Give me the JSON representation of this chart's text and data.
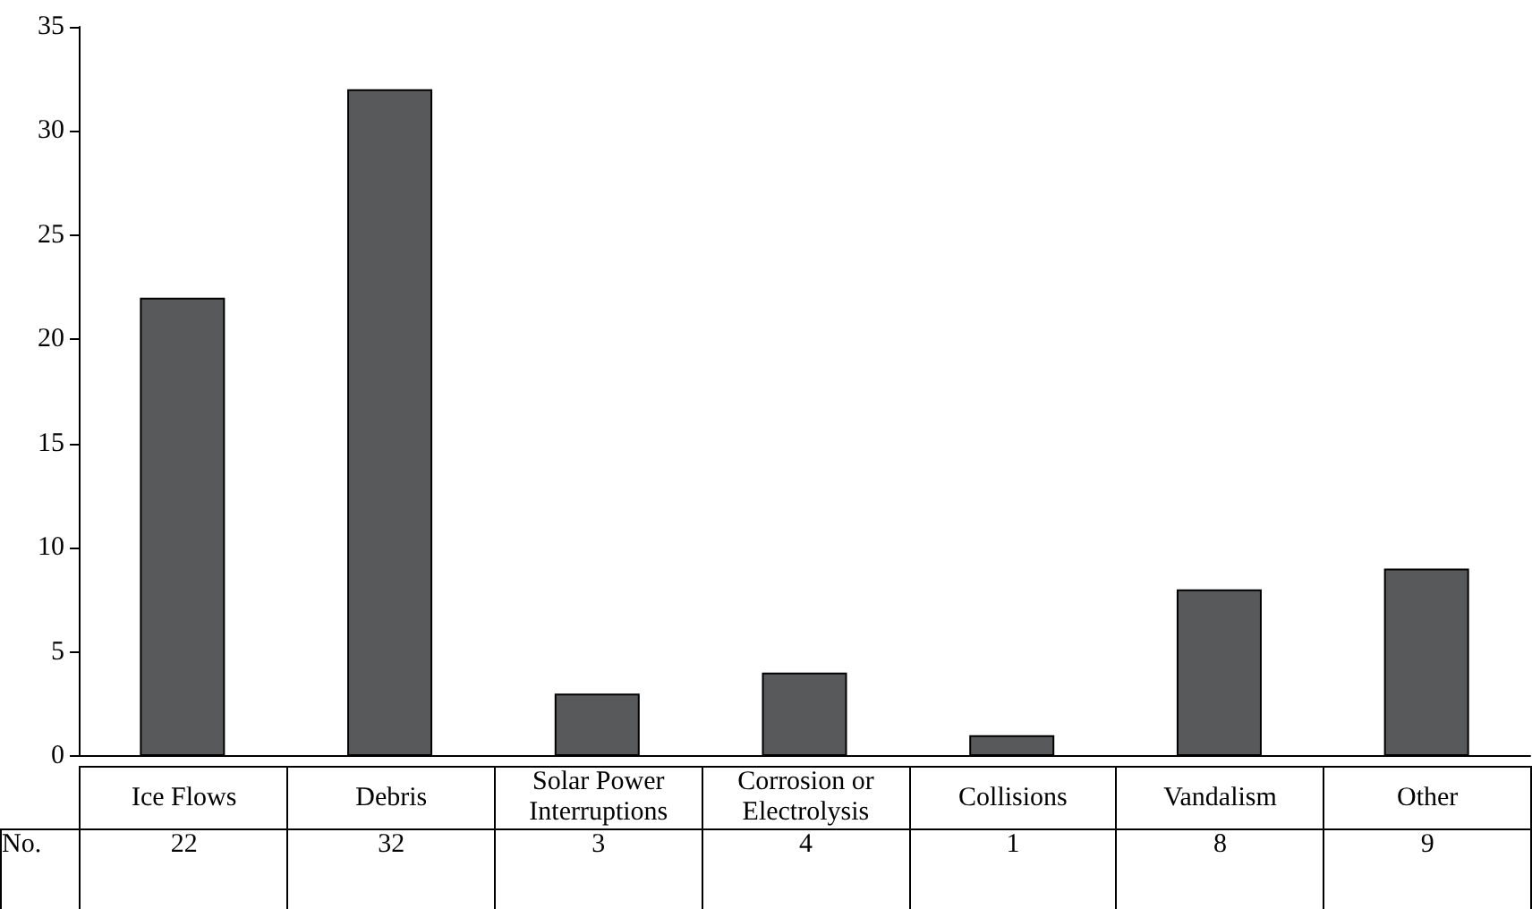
{
  "chart_data": {
    "type": "bar",
    "categories": [
      "Ice Flows",
      "Debris",
      "Solar Power Interruptions",
      "Corrosion or Electrolysis",
      "Collisions",
      "Vandalism",
      "Other"
    ],
    "series": [
      {
        "name": "No.",
        "color": "#58595b",
        "values": [
          22,
          32,
          3,
          4,
          1,
          8,
          9
        ]
      }
    ],
    "ylim": [
      0,
      35
    ],
    "yticks": [
      0,
      5,
      10,
      15,
      20,
      25,
      30,
      35
    ],
    "grid": false,
    "legend": false,
    "data_labels": true
  }
}
